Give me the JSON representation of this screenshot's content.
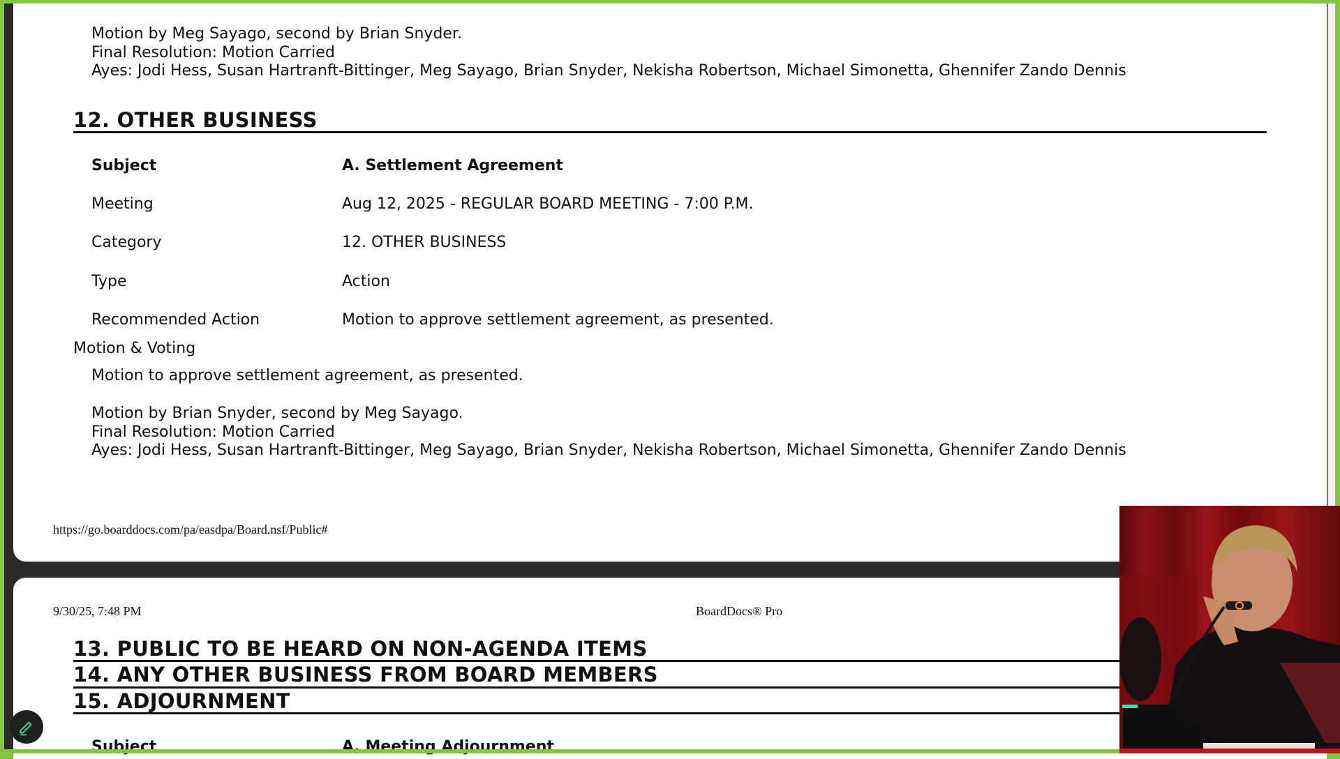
{
  "page1": {
    "prev_motion": {
      "motion_by": "Motion by Meg Sayago, second by Brian Snyder.",
      "final_resolution": "Final Resolution: Motion Carried",
      "ayes": "Ayes: Jodi Hess, Susan Hartranft-Bittinger, Meg Sayago, Brian Snyder, Nekisha Robertson, Michael Simonetta, Ghennifer Zando Dennis"
    },
    "section_heading": "12. OTHER BUSINESS",
    "fields": [
      {
        "label": "Subject",
        "value": "A. Settlement Agreement"
      },
      {
        "label": "Meeting",
        "value": "Aug 12, 2025 - REGULAR BOARD MEETING - 7:00 P.M."
      },
      {
        "label": "Category",
        "value": "12. OTHER BUSINESS"
      },
      {
        "label": "Type",
        "value": "Action"
      },
      {
        "label": "Recommended Action",
        "value": "Motion to approve settlement agreement, as presented."
      }
    ],
    "motion_voting_label": "Motion & Voting",
    "motion": {
      "text": "Motion to approve settlement agreement, as presented.",
      "motion_by": "Motion by Brian Snyder, second by Meg Sayago.",
      "final_resolution": "Final Resolution: Motion Carried",
      "ayes": "Ayes: Jodi Hess, Susan Hartranft-Bittinger, Meg Sayago, Brian Snyder, Nekisha Robertson, Michael Simonetta, Ghennifer Zando Dennis"
    },
    "footer_url": "https://go.boarddocs.com/pa/easdpa/Board.nsf/Public#"
  },
  "page2": {
    "print_date": "9/30/25, 7:48 PM",
    "print_title": "BoardDocs® Pro",
    "headings": [
      "13. PUBLIC TO BE HEARD ON NON-AGENDA ITEMS",
      "14. ANY OTHER BUSINESS FROM BOARD MEMBERS",
      "15. ADJOURNMENT"
    ],
    "subject_label": "Subject",
    "subject_value": "A. Meeting Adjournment"
  },
  "colors": {
    "frame_border": "#84c441",
    "accent_icon": "#3ddc84"
  },
  "icons": {
    "edit": "pencil-icon"
  }
}
